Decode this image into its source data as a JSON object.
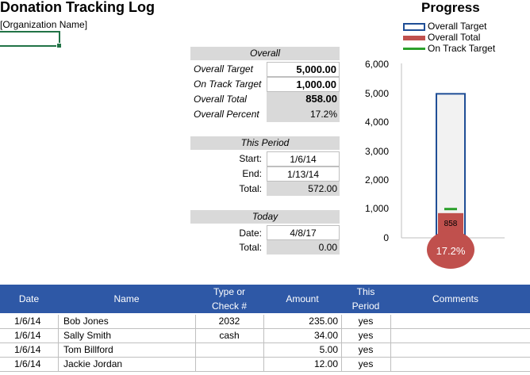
{
  "title": "Donation Tracking Log",
  "organization": "[Organization Name]",
  "overall": {
    "header": "Overall",
    "rows": [
      {
        "label": "Overall Target",
        "value": "5,000.00"
      },
      {
        "label": "On Track Target",
        "value": "1,000.00"
      },
      {
        "label": "Overall Total",
        "value": "858.00"
      },
      {
        "label": "Overall Percent",
        "value": "17.2%"
      }
    ]
  },
  "this_period": {
    "header": "This Period",
    "start_label": "Start:",
    "start_value": "1/6/14",
    "end_label": "End:",
    "end_value": "1/13/14",
    "total_label": "Total:",
    "total_value": "572.00"
  },
  "today": {
    "header": "Today",
    "date_label": "Date:",
    "date_value": "4/8/17",
    "total_label": "Total:",
    "total_value": "0.00"
  },
  "chart_data": {
    "type": "bar",
    "title": "Progress",
    "series": [
      {
        "name": "Overall Target",
        "values": [
          5000
        ]
      },
      {
        "name": "Overall Total",
        "values": [
          858
        ]
      },
      {
        "name": "On Track Target",
        "values": [
          1000
        ]
      }
    ],
    "y_ticks": [
      "6,000",
      "5,000",
      "4,000",
      "3,000",
      "2,000",
      "1,000",
      "0"
    ],
    "ylim": [
      0,
      6000
    ],
    "bar_label": "858",
    "bulb_label": "17.2%",
    "legend_position": "top-right",
    "colors": {
      "target": "#1f4e96",
      "total": "#c0504d",
      "on_track": "#2ca02c"
    }
  },
  "table": {
    "headers": {
      "date": "Date",
      "name": "Name",
      "type_line1": "Type or",
      "type_line2": "Check #",
      "amount": "Amount",
      "period_line1": "This",
      "period_line2": "Period",
      "comments": "Comments"
    },
    "rows": [
      {
        "date": "1/6/14",
        "name": "Bob Jones",
        "type": "2032",
        "amount": "235.00",
        "period": "yes",
        "comments": ""
      },
      {
        "date": "1/6/14",
        "name": "Sally Smith",
        "type": "cash",
        "amount": "34.00",
        "period": "yes",
        "comments": ""
      },
      {
        "date": "1/6/14",
        "name": "Tom Billford",
        "type": "",
        "amount": "5.00",
        "period": "yes",
        "comments": ""
      },
      {
        "date": "1/6/14",
        "name": "Jackie Jordan",
        "type": "",
        "amount": "12.00",
        "period": "yes",
        "comments": ""
      }
    ]
  }
}
